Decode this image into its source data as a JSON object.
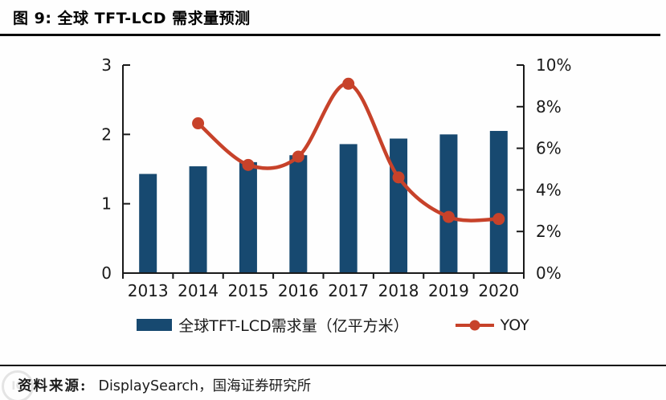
{
  "figure": {
    "title": "图 9:  全球 TFT-LCD 需求量预测",
    "source_label": "资料来源:",
    "source_text": "DisplaySearch，国海证券研究所",
    "watermark": "IC"
  },
  "colors": {
    "bar": "#174970",
    "line": "#c7422a",
    "axis": "#1a1a1a",
    "rule": "#0b0b0b"
  },
  "chart_data": {
    "type": "bar",
    "subtype": "bar+line-dual-axis",
    "categories": [
      "2013",
      "2014",
      "2015",
      "2016",
      "2017",
      "2018",
      "2019",
      "2020"
    ],
    "series": [
      {
        "name": "全球TFT-LCD需求量（亿平方米）",
        "type": "bar",
        "axis": "left",
        "color": "#174970",
        "values": [
          1.43,
          1.54,
          1.6,
          1.7,
          1.86,
          1.94,
          2.0,
          2.05
        ]
      },
      {
        "name": "YOY",
        "type": "line",
        "axis": "right",
        "color": "#c7422a",
        "values": [
          null,
          7.2,
          5.2,
          5.6,
          9.1,
          4.6,
          2.7,
          2.6
        ]
      }
    ],
    "left_axis": {
      "min": 0,
      "max": 3,
      "ticks": [
        0,
        1,
        2,
        3
      ],
      "suffix": ""
    },
    "right_axis": {
      "min": 0,
      "max": 10,
      "ticks": [
        0,
        2,
        4,
        6,
        8,
        10
      ],
      "suffix": "%"
    },
    "grid": "off",
    "legend_position": "bottom",
    "title": "图 9: 全球 TFT-LCD 需求量预测"
  }
}
